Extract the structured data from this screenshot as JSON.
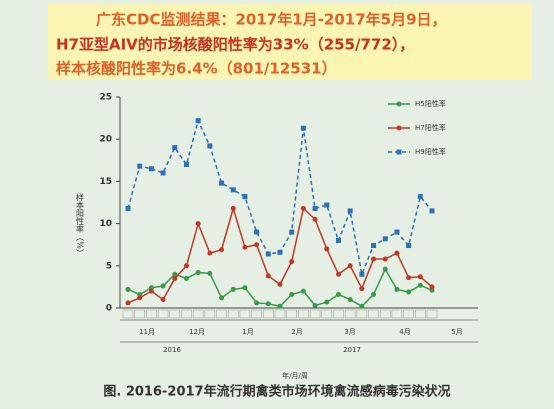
{
  "header": {
    "lines": [
      "广东CDC监测结果：2017年1月-2017年5月9日，",
      "H7亚型AIV的市场核酸阳性率为33%（255/772），",
      "样本核酸阳性率为6.4%（801/12531）"
    ]
  },
  "chart_data": {
    "type": "line",
    "y_label": "样本阳性率（%）",
    "x_label": "年/月/周",
    "categories": [
      null,
      null,
      null,
      null,
      null,
      null,
      null,
      null,
      null,
      null,
      null,
      null,
      null,
      null,
      null,
      null,
      null,
      null,
      null,
      null,
      null,
      null,
      null,
      null,
      null,
      null,
      null
    ],
    "month_labels": [
      "11月",
      "12月",
      "1月",
      "2月",
      "3月",
      "4月",
      "5月"
    ],
    "year_labels": [
      "2016",
      "2017"
    ],
    "series": [
      {
        "name": "H5阳性率",
        "color": "#3a9a4a",
        "dash": false,
        "values": [
          2.2,
          1.6,
          2.4,
          2.6,
          4,
          3.5,
          4.2,
          4.1,
          1.2,
          2.2,
          2.4,
          0.6,
          0.5,
          0.2,
          1.6,
          2,
          0.3,
          0.7,
          1.6,
          1.0,
          0.2,
          1.6,
          4.6,
          2.2,
          1.9,
          2.7,
          2.1
        ]
      },
      {
        "name": "H7阳性率",
        "color": "#c0392b",
        "dash": false,
        "values": [
          0.6,
          1.2,
          2,
          1.0,
          3.5,
          5,
          10,
          6.5,
          6.9,
          11.8,
          7.2,
          7.5,
          3.8,
          2.8,
          5.5,
          11.8,
          10.5,
          7,
          4,
          5,
          2.3,
          5.8,
          5.8,
          6.5,
          3.6,
          3.7,
          2.5
        ]
      },
      {
        "name": "H9阳性率",
        "color": "#2e6fb5",
        "dash": true,
        "values": [
          11.8,
          16.8,
          16.5,
          16,
          19,
          17,
          22.2,
          19.2,
          14.8,
          14,
          13.2,
          9,
          6.4,
          6.6,
          9,
          21.3,
          11.8,
          12.2,
          8,
          11.5,
          4,
          7.4,
          8.2,
          9,
          7.4,
          13.2,
          11.5
        ]
      }
    ],
    "ylim": [
      0,
      25
    ],
    "yticks": [
      0,
      5,
      10,
      15,
      20,
      25
    ],
    "caption": "图. 2016-2017年流行期禽类市场环境禽流感病毒污染状况"
  }
}
